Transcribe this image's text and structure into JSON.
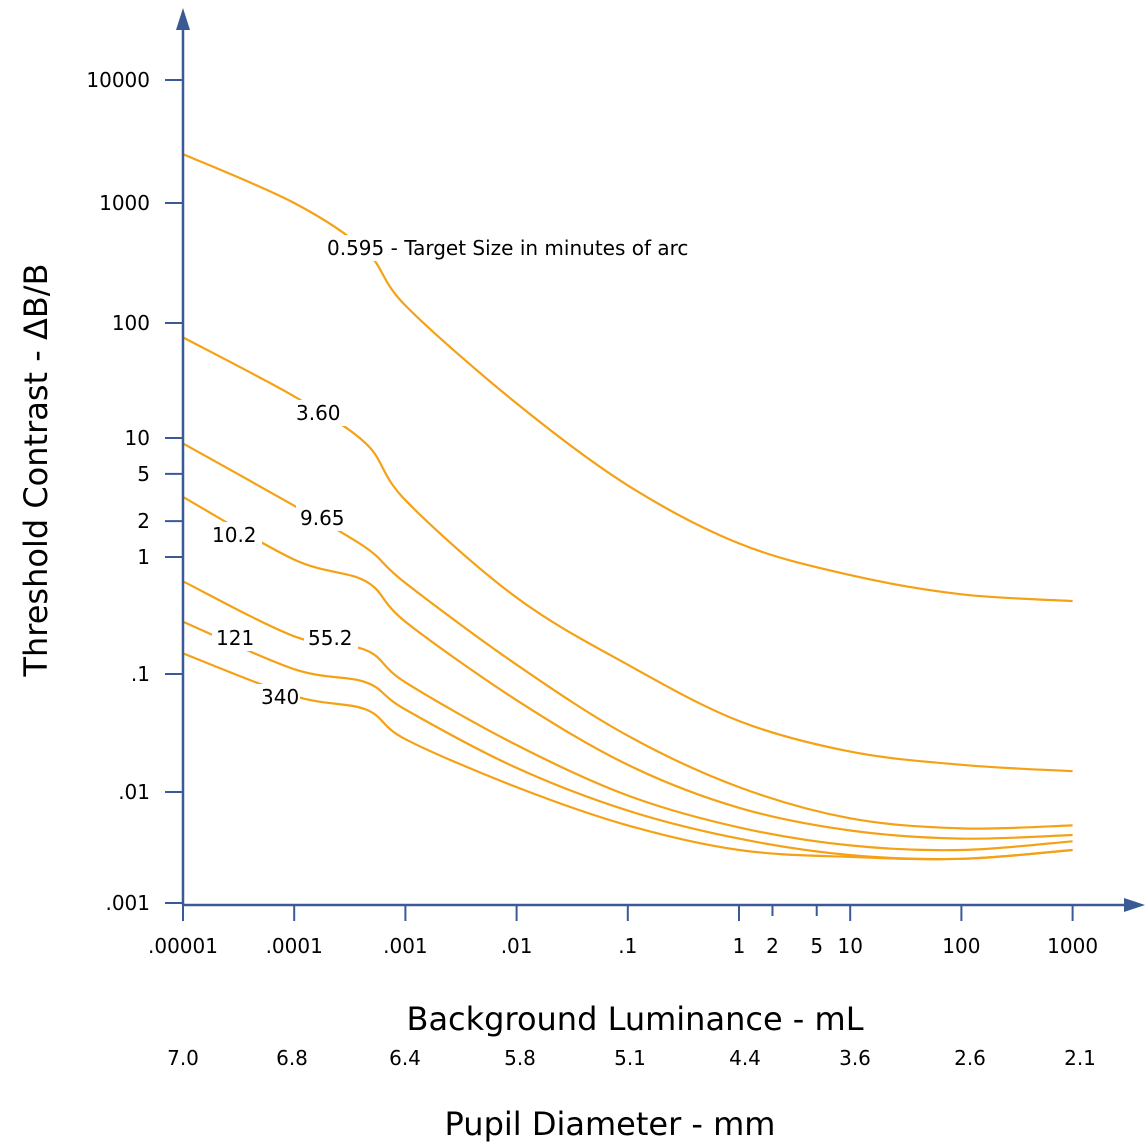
{
  "chart_data": {
    "type": "line",
    "xlabel": "Background Luminance - mL",
    "ylabel": "Threshold Contrast -  ΔB/B",
    "x_scale": "log",
    "y_scale": "log",
    "xlim": [
      1e-05,
      1000
    ],
    "ylim": [
      0.001,
      10000
    ],
    "x_ticks": [
      {
        "value": 1e-05,
        "label": ".00001"
      },
      {
        "value": 0.0001,
        "label": ".0001"
      },
      {
        "value": 0.001,
        "label": ".001"
      },
      {
        "value": 0.01,
        "label": ".01"
      },
      {
        "value": 0.1,
        "label": ".1"
      },
      {
        "value": 1,
        "label": "1"
      },
      {
        "value": 2,
        "label": "2"
      },
      {
        "value": 5,
        "label": "5"
      },
      {
        "value": 10,
        "label": "10"
      },
      {
        "value": 100,
        "label": "100"
      },
      {
        "value": 1000,
        "label": "1000"
      }
    ],
    "y_ticks": [
      {
        "value": 0.001,
        "label": ".001"
      },
      {
        "value": 0.01,
        "label": ".01"
      },
      {
        "value": 0.1,
        "label": ".1"
      },
      {
        "value": 1,
        "label": "1"
      },
      {
        "value": 2,
        "label": "2"
      },
      {
        "value": 5,
        "label": "5"
      },
      {
        "value": 10,
        "label": "10"
      },
      {
        "value": 100,
        "label": "100"
      },
      {
        "value": 1000,
        "label": "1000"
      },
      {
        "value": 10000,
        "label": "10000"
      }
    ],
    "secondary_xlabel": "Pupil Diameter - mm",
    "secondary_x_values": [
      "7.0",
      "6.8",
      "6.4",
      "5.8",
      "5.1",
      "4.4",
      "3.6",
      "2.6",
      "2.1"
    ],
    "grid": false,
    "legend": "none",
    "line_color": "#f5a115",
    "axis_color": "#3a5a96",
    "series": [
      {
        "label": "0.595 - Target Size  in minutes of arc",
        "x": [
          1e-05,
          0.0001,
          0.00044,
          0.001,
          0.01,
          0.1,
          1,
          10,
          100,
          1000
        ],
        "y": [
          2500,
          1000,
          400,
          140,
          20,
          4,
          1.3,
          0.7,
          0.48,
          0.42
        ]
      },
      {
        "label": "3.60",
        "x": [
          1e-05,
          0.0001,
          0.00044,
          0.001,
          0.01,
          0.1,
          1,
          10,
          100,
          1000
        ],
        "y": [
          75,
          23,
          9,
          3,
          0.45,
          0.12,
          0.04,
          0.022,
          0.017,
          0.015
        ]
      },
      {
        "label": "9.65",
        "x": [
          1e-05,
          0.0001,
          0.00044,
          0.001,
          0.01,
          0.1,
          1,
          10,
          100,
          1000
        ],
        "y": [
          9,
          2.7,
          1.2,
          0.6,
          0.12,
          0.03,
          0.011,
          0.0058,
          0.0047,
          0.005
        ]
      },
      {
        "label": "10.2",
        "x": [
          1e-05,
          0.0001,
          0.00044,
          0.001,
          0.01,
          0.1,
          1,
          10,
          100,
          1000
        ],
        "y": [
          3.2,
          0.95,
          0.62,
          0.28,
          0.06,
          0.017,
          0.0072,
          0.0045,
          0.0038,
          0.0041
        ]
      },
      {
        "label": "55.2",
        "x": [
          1e-05,
          0.0001,
          0.00044,
          0.001,
          0.01,
          0.1,
          1,
          10,
          100,
          1000
        ],
        "y": [
          0.62,
          0.21,
          0.16,
          0.085,
          0.025,
          0.0093,
          0.0048,
          0.0033,
          0.003,
          0.0036
        ]
      },
      {
        "label": "121",
        "x": [
          1e-05,
          0.0001,
          0.00044,
          0.001,
          0.01,
          0.1,
          1,
          10,
          100,
          1000
        ],
        "y": [
          0.28,
          0.11,
          0.085,
          0.05,
          0.016,
          0.0068,
          0.0038,
          0.0027,
          0.0025,
          0.003
        ]
      },
      {
        "label": "340",
        "x": [
          1e-05,
          0.0001,
          0.00044,
          0.001,
          0.01,
          0.1,
          1,
          10,
          100,
          1000
        ],
        "y": [
          0.15,
          0.065,
          0.05,
          0.028,
          0.011,
          0.005,
          0.003,
          0.0026,
          0.0025,
          0.003
        ]
      }
    ]
  }
}
